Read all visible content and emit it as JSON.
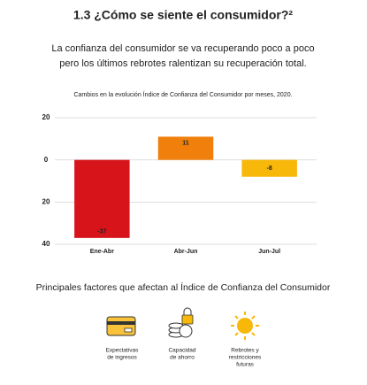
{
  "page": {
    "title": "1.3 ¿Cómo se siente el consumidor?²",
    "subtitle_lines": [
      "La confianza del consumidor se va recuperando poco a poco",
      "pero los últimos rebrotes ralentizan su recuperación total."
    ],
    "factors_title": "Principales factores que afectan al Índice de Confianza del Consumidor",
    "factors": [
      {
        "label_lines": [
          "Expectativas",
          "de ingresos"
        ]
      },
      {
        "label_lines": [
          "Capacidad",
          "de ahorro"
        ]
      },
      {
        "label_lines": [
          "Rebrotes y",
          "restricciones",
          "futuras"
        ]
      }
    ]
  },
  "chart_data": {
    "type": "bar",
    "title": "Cambios en la evolución Índice de Confianza del Consumidor por meses, 2020.",
    "categories": [
      "Ene-Abr",
      "Abr-Jun",
      "Jun-Jul"
    ],
    "values": [
      -37,
      11,
      -8
    ],
    "colors": [
      "#d7141a",
      "#f07f0b",
      "#f8b80a"
    ],
    "ylim": [
      -40,
      20
    ],
    "yticks": [
      20,
      0,
      {
        "value": -20,
        "label": "20"
      },
      {
        "value": -40,
        "label": "40"
      }
    ],
    "grid": true
  }
}
